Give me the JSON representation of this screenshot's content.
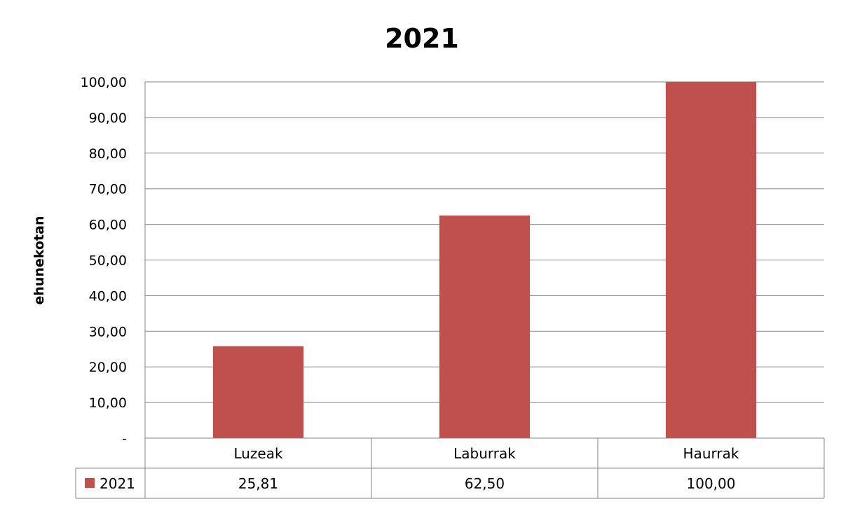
{
  "chart_data": {
    "type": "bar",
    "title": "2021",
    "ylabel": "ehunekotan",
    "xlabel": "",
    "categories": [
      "Luzeak",
      "Laburrak",
      "Haurrak"
    ],
    "series": [
      {
        "name": "2021",
        "values": [
          25.81,
          62.5,
          100.0
        ],
        "color": "#c0504d"
      }
    ],
    "value_labels": [
      "25,81",
      "62,50",
      "100,00"
    ],
    "ylim": [
      0,
      100
    ],
    "yticks": [
      0,
      10,
      20,
      30,
      40,
      50,
      60,
      70,
      80,
      90,
      100
    ],
    "ytick_labels": [
      "-",
      "10,00",
      "20,00",
      "30,00",
      "40,00",
      "50,00",
      "60,00",
      "70,00",
      "80,00",
      "90,00",
      "100,00"
    ],
    "grid": true,
    "data_table": true,
    "legend_placement": "data-table-row-header"
  }
}
